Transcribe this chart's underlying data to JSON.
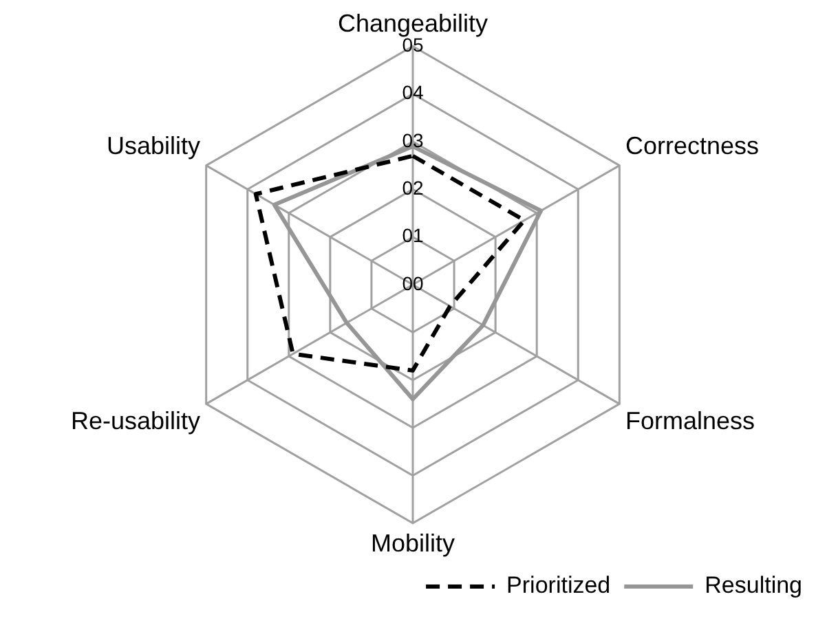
{
  "chart_data": {
    "type": "radar",
    "categories": [
      "Changeability",
      "Correctness",
      "Formalness",
      "Mobility",
      "Re-usability",
      "Usability"
    ],
    "series": [
      {
        "name": "Prioritized",
        "color": "#000000",
        "line_style": "dashed",
        "values": [
          2.7,
          2.7,
          0.9,
          1.8,
          2.9,
          3.8
        ]
      },
      {
        "name": "Resulting",
        "color": "#969696",
        "line_style": "solid",
        "values": [
          2.9,
          3.1,
          1.7,
          2.4,
          1.6,
          3.35
        ]
      }
    ],
    "ylim": [
      0,
      5
    ],
    "yticks": [
      {
        "value": 0,
        "label": "00"
      },
      {
        "value": 1,
        "label": "01"
      },
      {
        "value": 2,
        "label": "02"
      },
      {
        "value": 3,
        "label": "03"
      },
      {
        "value": 4,
        "label": "04"
      },
      {
        "value": 5,
        "label": "05"
      }
    ],
    "grid": true,
    "legend": "bottom right",
    "marker": "none"
  }
}
